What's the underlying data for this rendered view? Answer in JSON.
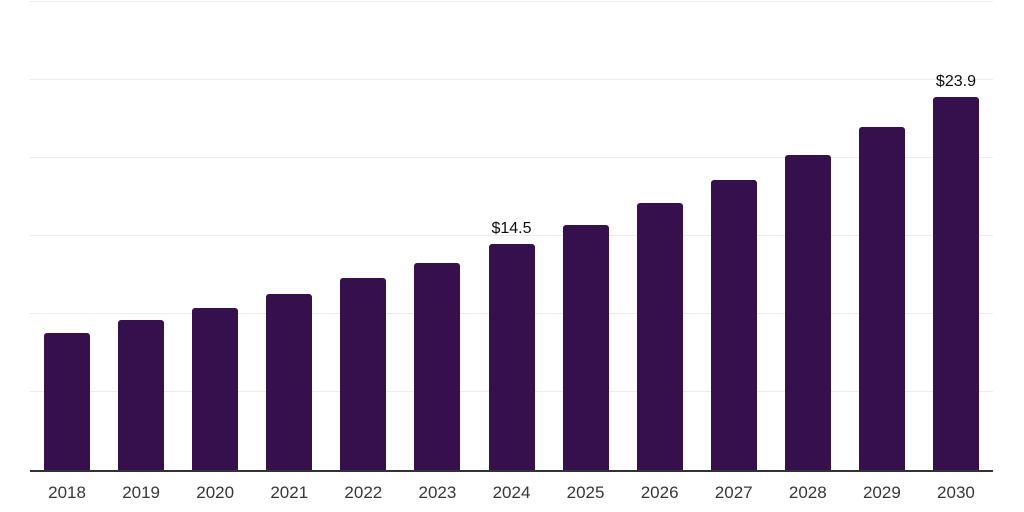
{
  "chart_data": {
    "type": "bar",
    "title": "",
    "xlabel": "",
    "ylabel": "",
    "categories": [
      "2018",
      "2019",
      "2020",
      "2021",
      "2022",
      "2023",
      "2024",
      "2025",
      "2026",
      "2027",
      "2028",
      "2029",
      "2030"
    ],
    "values": [
      8.8,
      9.6,
      10.4,
      11.3,
      12.3,
      13.3,
      14.5,
      15.7,
      17.1,
      18.6,
      20.2,
      22.0,
      23.9
    ],
    "data_labels": [
      {
        "category": "2024",
        "text": "$14.5"
      },
      {
        "category": "2030",
        "text": "$23.9"
      }
    ],
    "ylim": [
      0,
      30
    ],
    "gridline_values": [
      5,
      10,
      15,
      20,
      25,
      30
    ],
    "grid": "on",
    "legend": "none",
    "y_axis_labels_visible": false,
    "bar_color": "#36104d",
    "axis_line_color": "#333333",
    "gridline_color": "#ececec",
    "x_label_color": "#383838",
    "data_label_color": "#0f0f0f",
    "background_color": "#ffffff"
  }
}
